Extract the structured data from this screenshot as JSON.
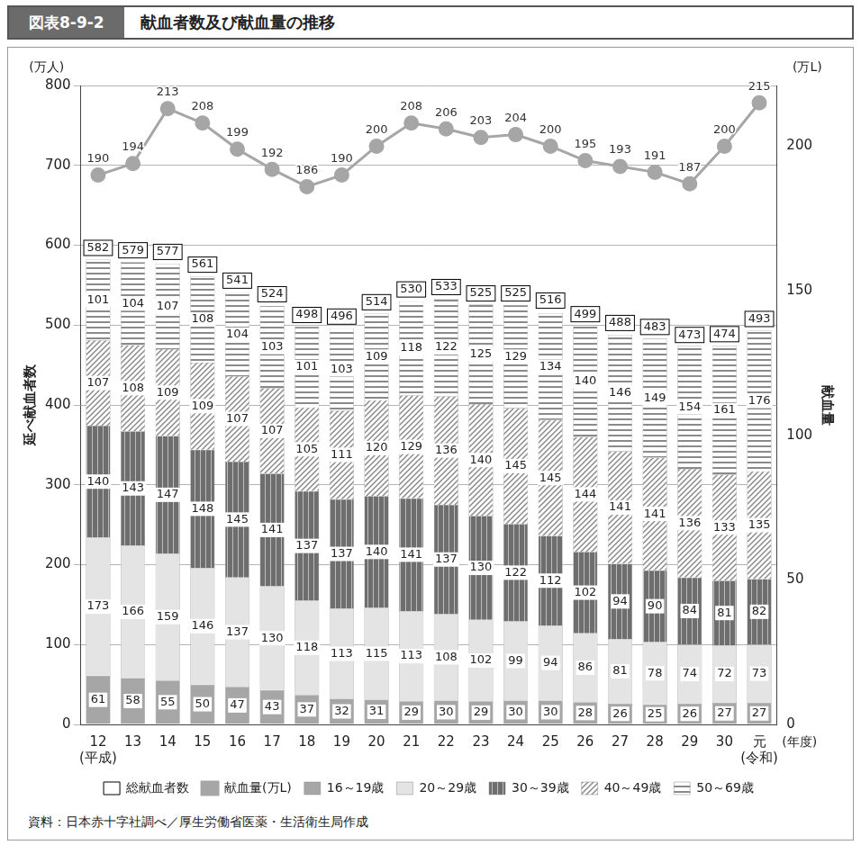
{
  "chart_data": {
    "type": "bar",
    "figure_label": "図表8-9-2",
    "title": "献血者数及び献血量の推移",
    "source": "資料：日本赤十字社調べ／厚生労働省医薬・生活衛生局作成",
    "categories": [
      [
        "12",
        "(平成)"
      ],
      "13",
      "14",
      "15",
      "16",
      "17",
      "18",
      "19",
      "20",
      "21",
      "22",
      "23",
      "24",
      "25",
      "26",
      "27",
      "28",
      "29",
      "30",
      [
        "元",
        "(令和)"
      ]
    ],
    "x_label": "(年度)",
    "y_label": "延べ献血者数",
    "y_unit": "(万人)",
    "y2_label": "献血量",
    "y2_unit": "(万L)",
    "ylim": [
      0,
      800
    ],
    "yticks": [
      0,
      100,
      200,
      300,
      400,
      500,
      600,
      700,
      800
    ],
    "y2lim": [
      0,
      221
    ],
    "y2ticks": [
      0,
      50,
      100,
      150,
      200
    ],
    "stacked": true,
    "data_labels": true,
    "grid": true,
    "legend": "bottom",
    "series": [
      {
        "name": "16～19歳",
        "type": "bar",
        "color": "#a6a6a6",
        "values": [
          61,
          58,
          55,
          50,
          47,
          43,
          37,
          32,
          31,
          29,
          30,
          29,
          30,
          30,
          28,
          26,
          25,
          26,
          27,
          27
        ]
      },
      {
        "name": "20～29歳",
        "type": "bar",
        "color": "#e4e4e4",
        "values": [
          173,
          166,
          159,
          146,
          137,
          130,
          118,
          113,
          115,
          113,
          108,
          102,
          99,
          94,
          86,
          81,
          78,
          74,
          72,
          73
        ]
      },
      {
        "name": "30～39歳",
        "type": "bar",
        "color": "#6e6e6e",
        "values": [
          140,
          143,
          147,
          148,
          145,
          141,
          137,
          137,
          140,
          141,
          137,
          130,
          122,
          112,
          102,
          94,
          90,
          84,
          81,
          82
        ]
      },
      {
        "name": "40～49歳",
        "type": "bar",
        "color": "#8a8a8a",
        "values": [
          107,
          108,
          109,
          109,
          107,
          107,
          105,
          111,
          120,
          129,
          136,
          140,
          145,
          145,
          144,
          141,
          141,
          136,
          133,
          135
        ]
      },
      {
        "name": "50～69歳",
        "type": "bar",
        "color": "#8a8a8a",
        "values": [
          101,
          104,
          107,
          108,
          104,
          103,
          101,
          103,
          109,
          118,
          122,
          125,
          129,
          134,
          140,
          146,
          149,
          154,
          161,
          176
        ]
      },
      {
        "name": "総献血者数",
        "type": "line",
        "line_style": "none",
        "marker": "box",
        "color": "#ffffff",
        "values": [
          582,
          579,
          577,
          561,
          541,
          524,
          498,
          496,
          514,
          530,
          533,
          525,
          525,
          516,
          499,
          488,
          483,
          473,
          474,
          493
        ]
      },
      {
        "name": "献血量(万L)",
        "type": "line",
        "line_style": "solid",
        "marker": "circle",
        "color": "#a6a6a6",
        "axis": "y2",
        "values": [
          190,
          194,
          213,
          208,
          199,
          192,
          186,
          190,
          200,
          208,
          206,
          203,
          204,
          200,
          195,
          193,
          191,
          187,
          200,
          215
        ]
      }
    ]
  }
}
